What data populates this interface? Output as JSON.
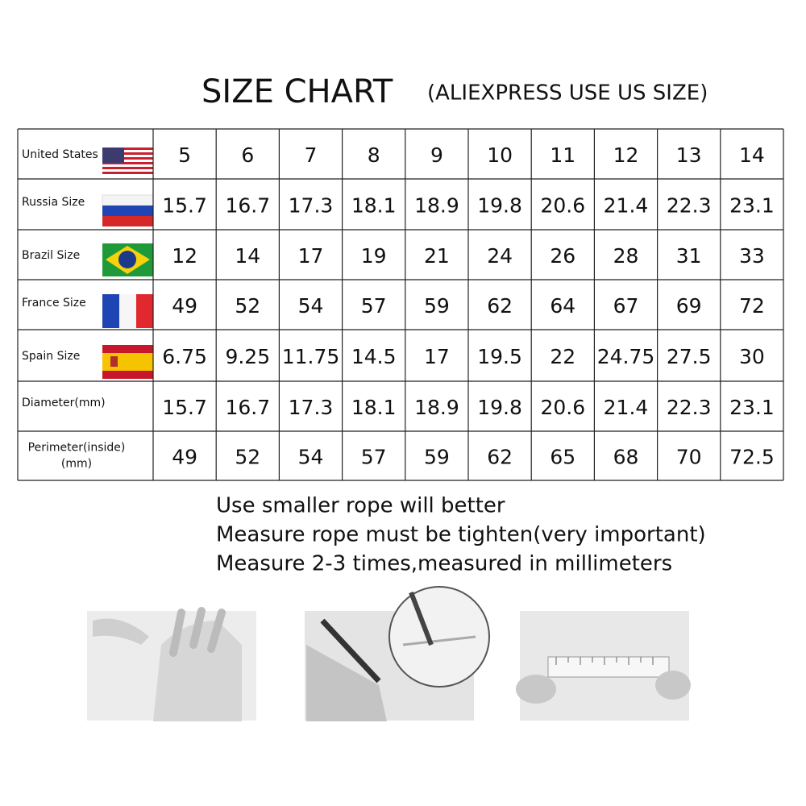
{
  "header": {
    "title": "SIZE CHART",
    "subtitle": "(ALIEXPRESS USE US SIZE)"
  },
  "table": {
    "rows": [
      {
        "label_lines": [
          "United States"
        ],
        "values": [
          5,
          6,
          7,
          8,
          9,
          10,
          11,
          12,
          13,
          14
        ]
      },
      {
        "label_lines": [
          "Russia Size"
        ],
        "values": [
          15.7,
          16.7,
          17.3,
          18.1,
          18.9,
          19.8,
          20.6,
          21.4,
          22.3,
          23.1
        ]
      },
      {
        "label_lines": [
          "Brazil Size"
        ],
        "values": [
          12,
          14,
          17,
          19,
          21,
          24,
          26,
          28,
          31,
          33
        ]
      },
      {
        "label_lines": [
          "France Size"
        ],
        "values": [
          49,
          52,
          54,
          57,
          59,
          62,
          64,
          67,
          69,
          72
        ]
      },
      {
        "label_lines": [
          "Spain Size"
        ],
        "values": [
          6.75,
          9.25,
          11.75,
          14.5,
          17,
          19.5,
          22,
          24.75,
          27.5,
          30
        ]
      },
      {
        "label_lines": [
          "Diameter(mm)"
        ],
        "values": [
          15.7,
          16.7,
          17.3,
          18.1,
          18.9,
          19.8,
          20.6,
          21.4,
          22.3,
          23.1
        ]
      },
      {
        "label_lines": [
          "Perimeter(inside)",
          "(mm)"
        ],
        "values": [
          49,
          52,
          54,
          57,
          59,
          62,
          65,
          68,
          70,
          72.5
        ]
      }
    ]
  },
  "instructions": [
    "Use smaller rope will better",
    "Measure rope must be tighten(very important)",
    "Measure 2-3 times,measured in millimeters"
  ]
}
